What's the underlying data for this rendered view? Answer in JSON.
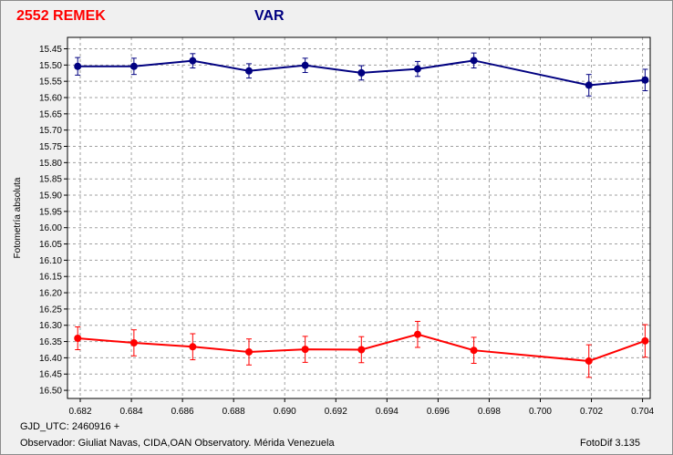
{
  "header": {
    "title_left": "2552 REMEK",
    "title_right": "VAR"
  },
  "footer": {
    "gjd": "GJD_UTC: 2460916 +",
    "observer": "Observador: Giuliat Navas, CIDA,OAN Observatory. Mérida Venezuela",
    "software": "FotoDif 3.135"
  },
  "chart_data": {
    "type": "line",
    "title": "",
    "xlabel": "",
    "ylabel": "Fotometría absoluta",
    "xlim": [
      0.6815,
      0.7043
    ],
    "ylim": [
      16.525,
      15.415
    ],
    "y_inverted": true,
    "grid": true,
    "x_ticks": [
      0.682,
      0.684,
      0.686,
      0.688,
      0.69,
      0.692,
      0.694,
      0.696,
      0.698,
      0.7,
      0.702,
      0.704
    ],
    "y_ticks": [
      15.45,
      15.5,
      15.55,
      15.6,
      15.65,
      15.7,
      15.75,
      15.8,
      15.85,
      15.9,
      15.95,
      16.0,
      16.05,
      16.1,
      16.15,
      16.2,
      16.25,
      16.3,
      16.35,
      16.4,
      16.45,
      16.5
    ],
    "series": [
      {
        "color": "#000080",
        "x": [
          0.6819,
          0.6841,
          0.6864,
          0.6886,
          0.6908,
          0.693,
          0.6952,
          0.6974,
          0.7019,
          0.7041
        ],
        "y": [
          15.504,
          15.504,
          15.487,
          15.518,
          15.501,
          15.524,
          15.512,
          15.486,
          15.562,
          15.546
        ],
        "err": [
          0.027,
          0.025,
          0.022,
          0.022,
          0.022,
          0.022,
          0.023,
          0.023,
          0.033,
          0.033
        ]
      },
      {
        "color": "#ff0000",
        "x": [
          0.6819,
          0.6841,
          0.6864,
          0.6886,
          0.6908,
          0.693,
          0.6952,
          0.6974,
          0.7019,
          0.7041
        ],
        "y": [
          16.34,
          16.354,
          16.366,
          16.382,
          16.374,
          16.375,
          16.328,
          16.377,
          16.41,
          16.348
        ],
        "err": [
          0.035,
          0.04,
          0.04,
          0.04,
          0.04,
          0.04,
          0.04,
          0.04,
          0.05,
          0.05
        ]
      }
    ]
  }
}
